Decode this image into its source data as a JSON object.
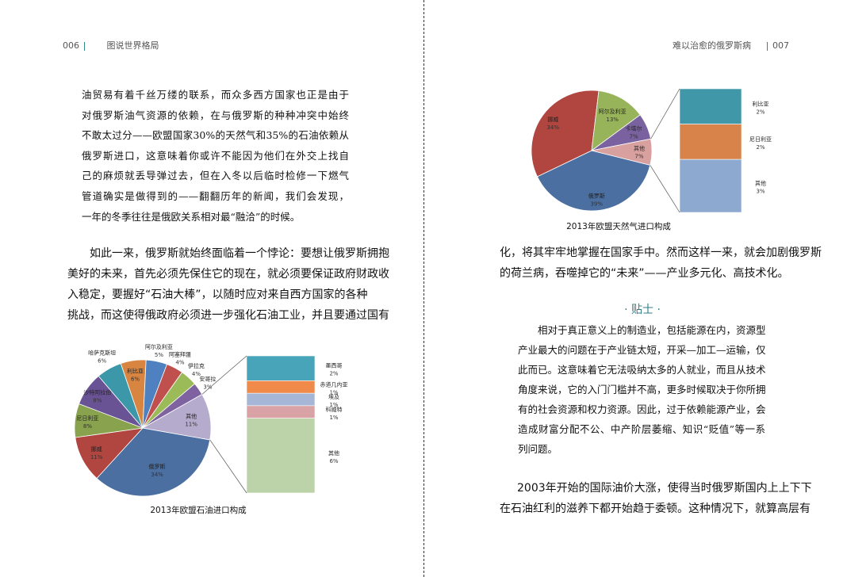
{
  "left_page": {
    "page_number": "006",
    "running_title": "图说世界格局",
    "quote_lines": [
      "油贸易有着千丝万缕的联系，而众多西方国家也正是由于",
      "对俄罗斯油气资源的依赖，在与俄罗斯的种种冲突中始终",
      "不敢太过分——欧盟国家30%的天然气和35%的石油依赖从",
      "俄罗斯进口，这意味着你或许不能因为他们在外交上找自",
      "己的麻烦就丢导弹过去，但在入冬以后临时检修一下燃气",
      "管道确实是做得到的——翻翻历年的新闻，我们会发现，",
      "一年的冬季往往是俄欧关系相对最“融洽”的时候。"
    ],
    "body_lines": [
      "如此一来，俄罗斯就始终面临着一个悖论：要想让俄罗斯拥抱",
      "美好的未来，首先必须先保住它的现在，就必须要保证政府财政收",
      "入稳定，要握好“石油大棒”，以随时应对来自西方国家的各种",
      "挑战，而这使得俄政府必须进一步强化石油工业，并且要通过国有"
    ]
  },
  "right_page": {
    "page_number": "007",
    "running_title": "难以治愈的俄罗斯病",
    "body_lines_1": [
      "化，将其牢牢地掌握在国家手中。然而这样一来，就会加剧俄罗斯",
      "的荷兰病，吞噬掉它的“未来”——产业多元化、高技术化。"
    ],
    "tip_title": "· 贴士 ·",
    "tip_lines": [
      "相对于真正意义上的制造业，包括能源在内，资源型",
      "产业最大的问题在于产业链太短，开采—加工—运输，仅",
      "此而已。这意味着它无法吸纳太多的人就业，而且从技术",
      "角度来说，它的入门门槛并不高，更多时候取决于你所拥",
      "有的社会资源和权力资源。因此，过于依赖能源产业，会",
      "造成财富分配不公、中产阶层萎缩、知识“贬值”等一系",
      "列问题。"
    ],
    "body_lines_2": [
      "2003年开始的国际油价大涨，使得当时俄罗斯国内上上下下",
      "在石油红利的滋养下都开始趋于委顿。这种情况下，就算高层有"
    ]
  },
  "chart_data": [
    {
      "type": "pie",
      "title": "2013年欧盟石油进口构成",
      "unit": "%",
      "slices": [
        {
          "label": "俄罗斯",
          "value": 34,
          "color": "#4a6fa0"
        },
        {
          "label": "挪威",
          "value": 11,
          "color": "#b0463f"
        },
        {
          "label": "尼日利亚",
          "value": 8,
          "color": "#88a24e"
        },
        {
          "label": "沙特阿拉伯",
          "value": 8,
          "color": "#6a5394"
        },
        {
          "label": "哈萨克斯坦",
          "value": 6,
          "color": "#3c98a9"
        },
        {
          "label": "利比亚",
          "value": 6,
          "color": "#d78540"
        },
        {
          "label": "阿尔及利亚",
          "value": 5,
          "color": "#4f80c0"
        },
        {
          "label": "阿塞拜疆",
          "value": 4,
          "color": "#c0504d"
        },
        {
          "label": "伊拉克",
          "value": 4,
          "color": "#9bbb59"
        },
        {
          "label": "安哥拉",
          "value": 3,
          "color": "#7f63a1"
        },
        {
          "label": "其他",
          "value": 11,
          "color": "#b5abcd"
        }
      ],
      "breakdown_of": "其他",
      "breakdown": [
        {
          "label": "墨西哥",
          "value": 2,
          "color": "#48a5b9"
        },
        {
          "label": "赤道几内亚",
          "value": 1,
          "color": "#ef8a4b"
        },
        {
          "label": "埃及",
          "value": 1,
          "color": "#a5b6d6"
        },
        {
          "label": "科威特",
          "value": 1,
          "color": "#d9a3a6"
        },
        {
          "label": "其他",
          "value": 6,
          "color": "#bcd3a9"
        }
      ]
    },
    {
      "type": "pie",
      "title": "2013年欧盟天然气进口构成",
      "unit": "%",
      "slices": [
        {
          "label": "俄罗斯",
          "value": 39,
          "color": "#4a6fa0"
        },
        {
          "label": "挪威",
          "value": 34,
          "color": "#b0463f"
        },
        {
          "label": "阿尔及利亚",
          "value": 13,
          "color": "#98b45a"
        },
        {
          "label": "卡塔尔",
          "value": 7,
          "color": "#7a62a0"
        },
        {
          "label": "其他",
          "value": 7,
          "color": "#d9a0a0"
        }
      ],
      "breakdown_of": "其他",
      "breakdown": [
        {
          "label": "利比亚",
          "value": 2,
          "color": "#3f97a8"
        },
        {
          "label": "尼日利亚",
          "value": 2,
          "color": "#d7834a"
        },
        {
          "label": "其他",
          "value": 3,
          "color": "#8ea9cf"
        }
      ]
    }
  ]
}
